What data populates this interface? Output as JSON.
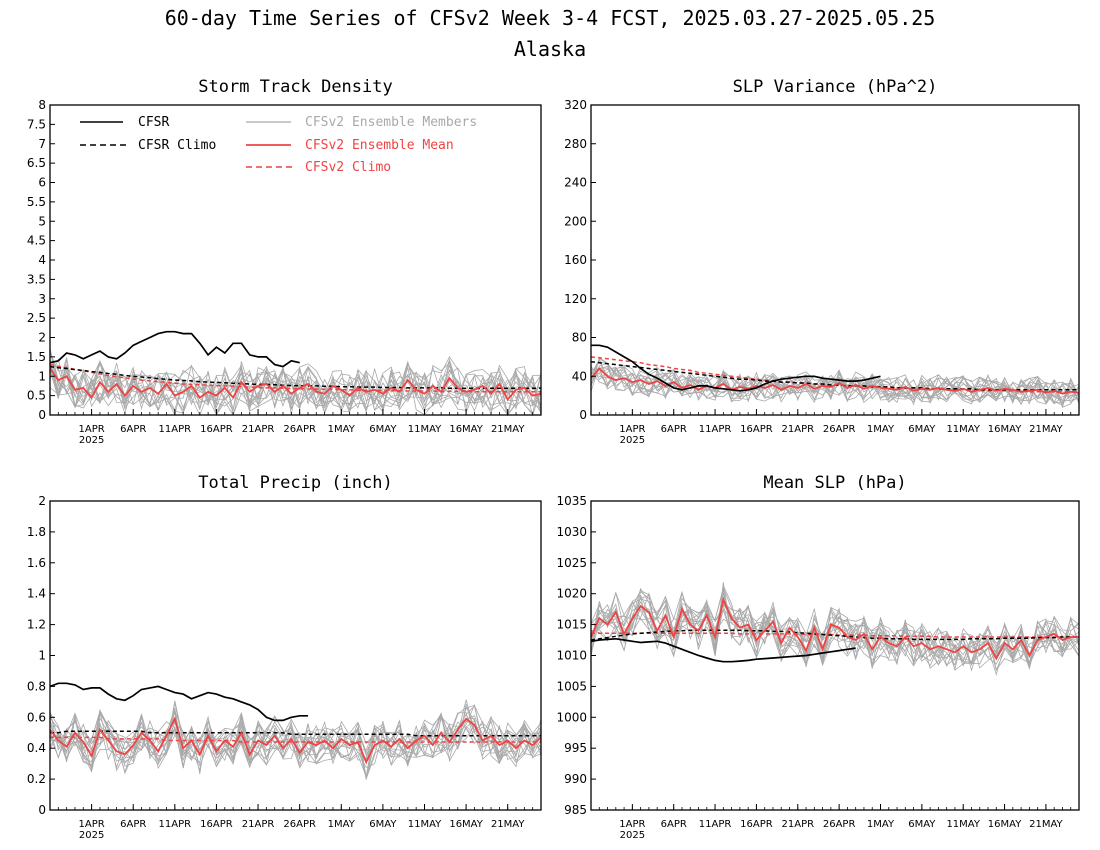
{
  "figure": {
    "title_line1": "60-day Time Series of CFSv2 Week 3-4 FCST, 2025.03.27-2025.05.25",
    "title_line2": "Alaska"
  },
  "colors": {
    "cfsr": "#000000",
    "members": "#a9a9a9",
    "ens_mean": "#ee4444",
    "cfsv2_climo": "#ee4444",
    "legend_members_text": "#a9a9a9"
  },
  "legend": {
    "cfsr": "CFSR",
    "cfsr_climo": "CFSR Climo",
    "members": "CFSv2 Ensemble Members",
    "ens_mean": "CFSv2 Ensemble Mean",
    "cfsv2_climo": "CFSv2 Climo"
  },
  "x_axis": {
    "ticks": [
      {
        "day": 5,
        "label": "1APR",
        "year": "2025"
      },
      {
        "day": 10,
        "label": "6APR"
      },
      {
        "day": 15,
        "label": "11APR"
      },
      {
        "day": 20,
        "label": "16APR"
      },
      {
        "day": 25,
        "label": "21APR"
      },
      {
        "day": 30,
        "label": "26APR"
      },
      {
        "day": 35,
        "label": "1MAY"
      },
      {
        "day": 40,
        "label": "6MAY"
      },
      {
        "day": 45,
        "label": "11MAY"
      },
      {
        "day": 50,
        "label": "16MAY"
      },
      {
        "day": 55,
        "label": "21MAY"
      }
    ],
    "range": [
      0,
      59
    ]
  },
  "chart_data": [
    {
      "type": "line",
      "title": "Storm Track Density",
      "ylim": [
        0,
        8
      ],
      "yticks": [
        "0",
        "0.5",
        "1",
        "1.5",
        "2",
        "2.5",
        "3",
        "3.5",
        "4",
        "4.5",
        "5",
        "5.5",
        "6",
        "6.5",
        "7",
        "7.5",
        "8"
      ],
      "ytick_values": [
        0,
        0.5,
        1,
        1.5,
        2,
        2.5,
        3,
        3.5,
        4,
        4.5,
        5,
        5.5,
        6,
        6.5,
        7,
        7.5,
        8
      ],
      "cfsr": [
        1.35,
        1.4,
        1.6,
        1.55,
        1.45,
        1.55,
        1.65,
        1.5,
        1.45,
        1.6,
        1.8,
        1.9,
        2.0,
        2.1,
        2.15,
        2.15,
        2.1,
        2.1,
        1.85,
        1.55,
        1.75,
        1.6,
        1.85,
        1.85,
        1.55,
        1.5,
        1.5,
        1.3,
        1.25,
        1.4,
        1.35
      ],
      "cfsr_climo": [
        1.25,
        1.22,
        1.2,
        1.17,
        1.15,
        1.12,
        1.1,
        1.07,
        1.05,
        1.02,
        1.0,
        0.98,
        0.96,
        0.94,
        0.92,
        0.9,
        0.89,
        0.88,
        0.86,
        0.85,
        0.84,
        0.83,
        0.82,
        0.81,
        0.8,
        0.79,
        0.79,
        0.78,
        0.77,
        0.76,
        0.76,
        0.75,
        0.75,
        0.74,
        0.74,
        0.73,
        0.73,
        0.72,
        0.72,
        0.72,
        0.71,
        0.71,
        0.71,
        0.7,
        0.7,
        0.7,
        0.7,
        0.7,
        0.69,
        0.69,
        0.69,
        0.69,
        0.69,
        0.69,
        0.69,
        0.69,
        0.69,
        0.69,
        0.69,
        0.69
      ],
      "cfsv2_climo": [
        1.3,
        1.26,
        1.22,
        1.18,
        1.14,
        1.1,
        1.06,
        1.02,
        0.99,
        0.96,
        0.93,
        0.9,
        0.88,
        0.86,
        0.84,
        0.82,
        0.8,
        0.79,
        0.78,
        0.77,
        0.76,
        0.75,
        0.74,
        0.73,
        0.72,
        0.71,
        0.7,
        0.7,
        0.69,
        0.68,
        0.68,
        0.67,
        0.67,
        0.66,
        0.66,
        0.65,
        0.65,
        0.64,
        0.64,
        0.64,
        0.63,
        0.63,
        0.63,
        0.62,
        0.62,
        0.62,
        0.62,
        0.61,
        0.61,
        0.61,
        0.61,
        0.6,
        0.6,
        0.6,
        0.6,
        0.6,
        0.6,
        0.6,
        0.6,
        0.6
      ],
      "ens_mean": [
        1.2,
        0.9,
        1.0,
        0.65,
        0.7,
        0.45,
        0.85,
        0.6,
        0.8,
        0.5,
        0.75,
        0.6,
        0.7,
        0.55,
        0.8,
        0.5,
        0.6,
        0.75,
        0.45,
        0.6,
        0.5,
        0.7,
        0.45,
        0.85,
        0.6,
        0.75,
        0.8,
        0.6,
        0.75,
        0.55,
        0.7,
        0.8,
        0.6,
        0.55,
        0.75,
        0.65,
        0.5,
        0.7,
        0.6,
        0.65,
        0.55,
        0.7,
        0.6,
        0.9,
        0.65,
        0.55,
        0.75,
        0.6,
        0.95,
        0.7,
        0.6,
        0.65,
        0.75,
        0.55,
        0.8,
        0.4,
        0.65,
        0.7,
        0.5,
        0.55
      ],
      "member_spread": 0.55,
      "n_members": 16
    },
    {
      "type": "line",
      "title": "SLP Variance (hPa^2)",
      "ylim": [
        0,
        320
      ],
      "yticks": [
        "0",
        "40",
        "80",
        "120",
        "160",
        "200",
        "240",
        "280",
        "320"
      ],
      "ytick_values": [
        0,
        40,
        80,
        120,
        160,
        200,
        240,
        280,
        320
      ],
      "cfsr": [
        72,
        72,
        70,
        65,
        60,
        55,
        48,
        42,
        38,
        33,
        28,
        26,
        28,
        30,
        30,
        28,
        27,
        26,
        25,
        26,
        28,
        32,
        35,
        37,
        38,
        39,
        40,
        40,
        38,
        37,
        36,
        35,
        35,
        36,
        38,
        40
      ],
      "cfsr_climo": [
        55,
        54,
        53,
        52,
        51,
        50,
        49,
        48,
        47,
        46,
        45,
        44,
        43,
        42,
        41,
        40,
        39,
        38,
        37,
        37,
        36,
        35,
        35,
        34,
        34,
        33,
        33,
        32,
        32,
        31,
        31,
        30,
        30,
        30,
        29,
        29,
        29,
        28,
        28,
        28,
        28,
        27,
        27,
        27,
        27,
        27,
        27,
        26,
        26,
        26,
        26,
        26,
        26,
        26,
        26,
        26,
        26,
        26,
        26,
        26
      ],
      "cfsv2_climo": [
        60,
        59,
        58,
        57,
        56,
        55,
        54,
        52,
        51,
        50,
        48,
        47,
        46,
        44,
        43,
        42,
        41,
        40,
        39,
        38,
        37,
        36,
        35,
        34,
        34,
        33,
        33,
        32,
        32,
        31,
        31,
        30,
        30,
        30,
        29,
        29,
        29,
        28,
        28,
        28,
        27,
        27,
        27,
        26,
        26,
        26,
        26,
        25,
        25,
        25,
        25,
        25,
        25,
        24,
        24,
        24,
        24,
        24,
        24,
        24
      ],
      "ens_mean": [
        38,
        48,
        40,
        36,
        38,
        34,
        36,
        32,
        35,
        30,
        34,
        28,
        31,
        26,
        30,
        28,
        32,
        26,
        29,
        27,
        30,
        28,
        31,
        26,
        30,
        28,
        32,
        27,
        30,
        29,
        33,
        28,
        31,
        27,
        30,
        28,
        27,
        26,
        29,
        25,
        27,
        26,
        28,
        26,
        25,
        27,
        24,
        26,
        28,
        25,
        27,
        26,
        24,
        25,
        26,
        23,
        25,
        22,
        24,
        23
      ],
      "member_spread": 14,
      "n_members": 16
    },
    {
      "type": "line",
      "title": "Total Precip (inch)",
      "ylim": [
        0,
        2
      ],
      "yticks": [
        "0",
        "0.2",
        "0.4",
        "0.6",
        "0.8",
        "1",
        "1.2",
        "1.4",
        "1.6",
        "1.8",
        "2"
      ],
      "ytick_values": [
        0,
        0.2,
        0.4,
        0.6,
        0.8,
        1,
        1.2,
        1.4,
        1.6,
        1.8,
        2
      ],
      "cfsr": [
        0.8,
        0.82,
        0.82,
        0.81,
        0.78,
        0.79,
        0.79,
        0.75,
        0.72,
        0.71,
        0.74,
        0.78,
        0.79,
        0.8,
        0.78,
        0.76,
        0.75,
        0.72,
        0.74,
        0.76,
        0.75,
        0.73,
        0.72,
        0.7,
        0.68,
        0.65,
        0.6,
        0.58,
        0.58,
        0.6,
        0.61,
        0.61
      ],
      "cfsr_climo": [
        0.5,
        0.5,
        0.51,
        0.51,
        0.51,
        0.51,
        0.51,
        0.51,
        0.51,
        0.51,
        0.51,
        0.51,
        0.5,
        0.5,
        0.5,
        0.5,
        0.5,
        0.5,
        0.5,
        0.5,
        0.5,
        0.5,
        0.5,
        0.5,
        0.5,
        0.5,
        0.5,
        0.5,
        0.5,
        0.49,
        0.49,
        0.49,
        0.49,
        0.49,
        0.49,
        0.49,
        0.49,
        0.49,
        0.49,
        0.49,
        0.49,
        0.49,
        0.49,
        0.49,
        0.48,
        0.48,
        0.48,
        0.48,
        0.48,
        0.48,
        0.48,
        0.48,
        0.48,
        0.48,
        0.48,
        0.48,
        0.48,
        0.48,
        0.48,
        0.48
      ],
      "cfsv2_climo": [
        0.47,
        0.47,
        0.47,
        0.47,
        0.47,
        0.47,
        0.47,
        0.46,
        0.46,
        0.46,
        0.46,
        0.46,
        0.46,
        0.46,
        0.45,
        0.45,
        0.45,
        0.45,
        0.45,
        0.45,
        0.45,
        0.45,
        0.45,
        0.44,
        0.44,
        0.44,
        0.44,
        0.44,
        0.44,
        0.44,
        0.44,
        0.44,
        0.44,
        0.44,
        0.44,
        0.44,
        0.44,
        0.44,
        0.44,
        0.44,
        0.44,
        0.44,
        0.44,
        0.44,
        0.44,
        0.44,
        0.44,
        0.44,
        0.44,
        0.44,
        0.44,
        0.44,
        0.44,
        0.44,
        0.44,
        0.44,
        0.44,
        0.44,
        0.44,
        0.44
      ],
      "ens_mean": [
        0.52,
        0.45,
        0.41,
        0.5,
        0.44,
        0.35,
        0.52,
        0.45,
        0.38,
        0.36,
        0.42,
        0.5,
        0.45,
        0.38,
        0.48,
        0.59,
        0.4,
        0.45,
        0.36,
        0.48,
        0.38,
        0.45,
        0.41,
        0.5,
        0.36,
        0.45,
        0.42,
        0.48,
        0.4,
        0.46,
        0.37,
        0.44,
        0.42,
        0.45,
        0.4,
        0.46,
        0.42,
        0.44,
        0.31,
        0.42,
        0.45,
        0.41,
        0.46,
        0.4,
        0.45,
        0.48,
        0.42,
        0.5,
        0.44,
        0.52,
        0.59,
        0.55,
        0.45,
        0.48,
        0.42,
        0.45,
        0.4,
        0.45,
        0.42,
        0.47
      ],
      "member_spread": 0.13,
      "n_members": 16
    },
    {
      "type": "line",
      "title": "Mean SLP (hPa)",
      "ylim": [
        985,
        1035
      ],
      "yticks": [
        "985",
        "990",
        "995",
        "1000",
        "1005",
        "1010",
        "1015",
        "1020",
        "1025",
        "1030",
        "1035"
      ],
      "ytick_values": [
        985,
        990,
        995,
        1000,
        1005,
        1010,
        1015,
        1020,
        1025,
        1030,
        1035
      ],
      "cfsr": [
        1012.3,
        1012.5,
        1012.6,
        1012.7,
        1012.5,
        1012.3,
        1012.1,
        1012.2,
        1012.3,
        1012.0,
        1011.5,
        1011.0,
        1010.5,
        1010.0,
        1009.6,
        1009.2,
        1009.0,
        1009.0,
        1009.1,
        1009.2,
        1009.4,
        1009.5,
        1009.6,
        1009.7,
        1009.8,
        1009.9,
        1010.0,
        1010.2,
        1010.4,
        1010.6,
        1010.8,
        1011.0,
        1011.2
      ],
      "cfsr_climo": [
        1012.5,
        1012.7,
        1012.9,
        1013.1,
        1013.3,
        1013.5,
        1013.6,
        1013.7,
        1013.8,
        1013.9,
        1014.0,
        1014.0,
        1014.1,
        1014.1,
        1014.1,
        1014.1,
        1014.1,
        1014.1,
        1014.1,
        1014.0,
        1014.0,
        1014.0,
        1013.9,
        1013.9,
        1013.8,
        1013.7,
        1013.6,
        1013.5,
        1013.4,
        1013.3,
        1013.2,
        1013.1,
        1013.0,
        1012.9,
        1012.8,
        1012.8,
        1012.7,
        1012.7,
        1012.7,
        1012.6,
        1012.6,
        1012.6,
        1012.6,
        1012.6,
        1012.6,
        1012.6,
        1012.7,
        1012.7,
        1012.7,
        1012.7,
        1012.8,
        1012.8,
        1012.8,
        1012.8,
        1012.9,
        1012.9,
        1012.9,
        1013.0,
        1013.0,
        1013.0
      ],
      "cfsv2_climo": [
        1013.6,
        1013.6,
        1013.6,
        1013.6,
        1013.6,
        1013.6,
        1013.6,
        1013.6,
        1013.6,
        1013.6,
        1013.6,
        1013.6,
        1013.6,
        1013.6,
        1013.6,
        1013.6,
        1013.6,
        1013.6,
        1013.5,
        1013.5,
        1013.5,
        1013.5,
        1013.5,
        1013.5,
        1013.5,
        1013.4,
        1013.4,
        1013.4,
        1013.4,
        1013.4,
        1013.3,
        1013.3,
        1013.3,
        1013.3,
        1013.2,
        1013.2,
        1013.2,
        1013.2,
        1013.1,
        1013.1,
        1013.1,
        1013.1,
        1013.0,
        1013.0,
        1013.0,
        1013.0,
        1013.0,
        1013.0,
        1013.0,
        1013.0,
        1013.0,
        1013.0,
        1013.0,
        1013.0,
        1013.0,
        1013.0,
        1013.0,
        1013.0,
        1013.0,
        1013.0
      ],
      "ens_mean": [
        1013.0,
        1016.0,
        1015.0,
        1017.0,
        1013.5,
        1016.0,
        1018.0,
        1017.0,
        1014.0,
        1016.5,
        1013.0,
        1017.5,
        1015.0,
        1014.0,
        1016.5,
        1013.0,
        1019.0,
        1016.0,
        1014.5,
        1015.0,
        1012.5,
        1014.0,
        1015.5,
        1012.0,
        1014.5,
        1013.0,
        1010.8,
        1014.5,
        1011.0,
        1015.0,
        1014.5,
        1013.0,
        1012.5,
        1013.5,
        1011.0,
        1013.0,
        1012.0,
        1011.5,
        1013.0,
        1011.5,
        1012.0,
        1011.0,
        1011.5,
        1011.0,
        1010.5,
        1011.5,
        1010.5,
        1011.0,
        1012.0,
        1009.5,
        1012.0,
        1011.0,
        1012.5,
        1010.0,
        1012.5,
        1013.0,
        1013.5,
        1012.5,
        1013.0,
        1013.0
      ],
      "member_spread": 3.2,
      "n_members": 16
    }
  ]
}
